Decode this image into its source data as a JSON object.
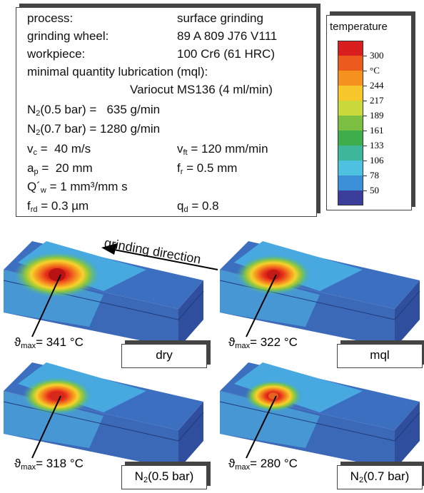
{
  "info": {
    "process_label": "process:",
    "process": "surface grinding",
    "wheel_label": "grinding wheel:",
    "wheel": "89 A 809 J76 V111",
    "workpiece_label": "workpiece:",
    "workpiece": "100 Cr6 (61 HRC)",
    "mql_label": "minimal quantity lubrication (mql):",
    "mql": "Variocut MS136 (4 ml/min)",
    "n2_low": {
      "symbol": "N",
      "sub": "2",
      "text": "(0.5 bar) =   635 g/min"
    },
    "n2_high": {
      "symbol": "N",
      "sub": "2",
      "text": "(0.7 bar) = 1280 g/min"
    },
    "vc": {
      "symbol": "v",
      "sub": "c",
      "text": " =  40 m/s"
    },
    "vft": {
      "symbol": "v",
      "sub": "ft",
      "text": " = 120 mm/min"
    },
    "ap": {
      "symbol": "a",
      "sub": "p",
      "text": " =  20 mm"
    },
    "fr": {
      "symbol": "f",
      "sub": "r",
      "text": " = 0.5 mm"
    },
    "qw": {
      "symbol": "Q´",
      "sub": "w",
      "text": " = 1 mm³/mm s"
    },
    "frd": {
      "symbol": "f",
      "sub": "rd",
      "text": " = 0.3 µm"
    },
    "qd": {
      "symbol": "q",
      "sub": "d",
      "text": " = 0.8"
    }
  },
  "legend": {
    "title": "temperature",
    "colors": [
      "#d81e1e",
      "#ec5a1e",
      "#f5921f",
      "#f7c72c",
      "#c9d83a",
      "#7cc043",
      "#3fad4c",
      "#3db69a",
      "#4ec0e0",
      "#3a8fd6",
      "#3a3d9a"
    ],
    "labels": [
      "300",
      "°C",
      "244",
      "217",
      "189",
      "161",
      "133",
      "106",
      "78",
      "50"
    ]
  },
  "direction": "grinding direction",
  "panels": [
    {
      "tmax": {
        "symbol": "ϑ",
        "sub": "max",
        "text": "= 341 °C"
      },
      "condition": {
        "text": "dry"
      }
    },
    {
      "tmax": {
        "symbol": "ϑ",
        "sub": "max",
        "text": "= 322 °C"
      },
      "condition": {
        "text": "mql"
      }
    },
    {
      "tmax": {
        "symbol": "ϑ",
        "sub": "max",
        "text": "= 318 °C"
      },
      "condition": {
        "symbol": "N",
        "sub": "2",
        "text": "(0.5 bar)"
      }
    },
    {
      "tmax": {
        "symbol": "ϑ",
        "sub": "max",
        "text": "= 280 °C"
      },
      "condition": {
        "symbol": "N",
        "sub": "2",
        "text": "(0.7 bar)"
      }
    }
  ]
}
